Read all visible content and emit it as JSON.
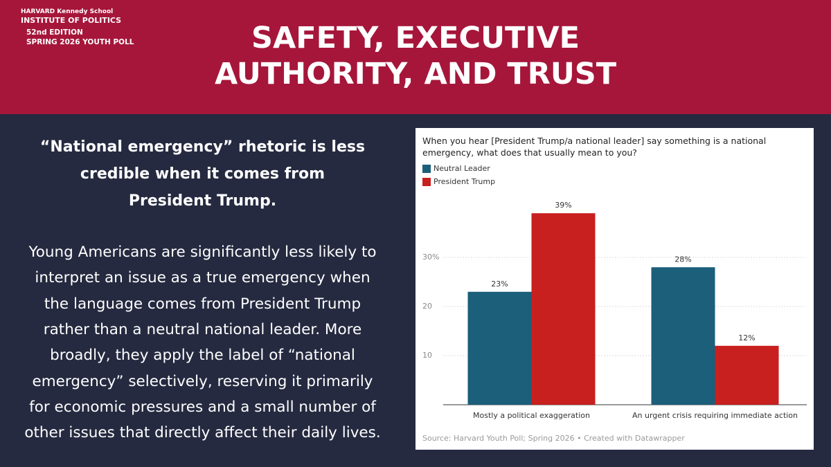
{
  "header": {
    "org_top": "HARVARD Kennedy School",
    "org": "INSTITUTE OF POLITICS",
    "edition": "52nd EDITION",
    "poll": "SPRING 2026 YOUTH POLL",
    "title_lines": [
      "SAFETY, EXECUTIVE",
      "AUTHORITY, AND TRUST"
    ]
  },
  "body": {
    "headline_lines": [
      "“National emergency” rhetoric is less",
      "credible when it comes from",
      "President Trump."
    ],
    "paragraph_lines": [
      "Young Americans are significantly less likely to",
      "interpret an issue as a true emergency when",
      "the language comes from President Trump",
      "rather than a neutral national leader. More",
      "broadly, they apply the label of “national",
      "emergency” selectively, reserving it primarily",
      "for economic pressures and a small number of",
      "other issues that directly affect their daily lives."
    ]
  },
  "chart_data": {
    "type": "bar",
    "title": "When you hear [President Trump/a national leader] say something is a national emergency, what does that usually mean to you?",
    "categories": [
      "Mostly a political exaggeration",
      "An urgent crisis requiring immediate action"
    ],
    "series": [
      {
        "name": "Neutral Leader",
        "color": "#1b5f7a",
        "values": [
          23,
          28
        ],
        "value_labels": [
          "23%",
          "28%"
        ]
      },
      {
        "name": "President Trump",
        "color": "#c81f1f",
        "values": [
          39,
          12
        ],
        "value_labels": [
          "39%",
          "12%"
        ]
      }
    ],
    "ylim": [
      0,
      41
    ],
    "yticks": [
      {
        "value": 30,
        "label": "30%"
      },
      20,
      10
    ],
    "grid": true,
    "source": "Source: Harvard Youth Poll; Spring 2026 • Created with Datawrapper"
  }
}
